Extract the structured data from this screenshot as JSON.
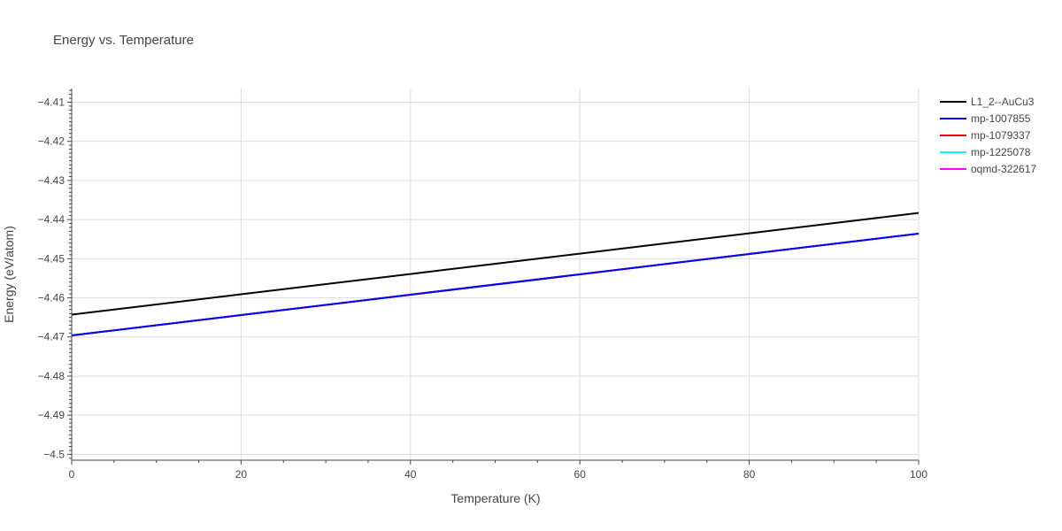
{
  "chart_data": {
    "type": "line",
    "title": "Energy vs. Temperature",
    "xlabel": "Temperature (K)",
    "ylabel": "Energy (eV/atom)",
    "xlim": [
      0,
      100
    ],
    "ylim": [
      -4.5015,
      -4.4065
    ],
    "x_ticks": [
      0,
      20,
      40,
      60,
      80,
      100
    ],
    "x_tick_labels": [
      "0",
      "20",
      "40",
      "60",
      "80",
      "100"
    ],
    "y_ticks": [
      -4.41,
      -4.42,
      -4.43,
      -4.44,
      -4.45,
      -4.46,
      -4.47,
      -4.48,
      -4.49,
      -4.5
    ],
    "y_tick_labels": [
      "−4.41",
      "−4.42",
      "−4.43",
      "−4.44",
      "−4.45",
      "−4.46",
      "−4.47",
      "−4.48",
      "−4.49",
      "−4.5"
    ],
    "grid": true,
    "legend_position": "right",
    "series": [
      {
        "name": "L1_2--AuCu3",
        "color": "#000000",
        "x": [
          0,
          20,
          40,
          60,
          80,
          100
        ],
        "y": [
          -4.4643,
          -4.4591,
          -4.4539,
          -4.4487,
          -4.4435,
          -4.4383
        ]
      },
      {
        "name": "mp-1007855",
        "color": "#0000ff",
        "x": [
          0,
          20,
          40,
          60,
          80,
          100
        ],
        "y": [
          -4.4696,
          -4.4644,
          -4.4592,
          -4.454,
          -4.4488,
          -4.4436
        ]
      },
      {
        "name": "mp-1079337",
        "color": "#ff0000",
        "x": [
          0,
          20,
          40,
          60,
          80,
          100
        ],
        "y": [
          -4.4696,
          -4.4644,
          -4.4592,
          -4.454,
          -4.4488,
          -4.4436
        ]
      },
      {
        "name": "mp-1225078",
        "color": "#00ffff",
        "x": [
          0,
          20,
          40,
          60,
          80,
          100
        ],
        "y": [
          -4.4696,
          -4.4644,
          -4.4592,
          -4.454,
          -4.4488,
          -4.4436
        ]
      },
      {
        "name": "oqmd-322617",
        "color": "#ff00ff",
        "x": [
          0,
          20,
          40,
          60,
          80,
          100
        ],
        "y": [
          -4.4696,
          -4.4644,
          -4.4592,
          -4.454,
          -4.4488,
          -4.4436
        ]
      }
    ]
  }
}
